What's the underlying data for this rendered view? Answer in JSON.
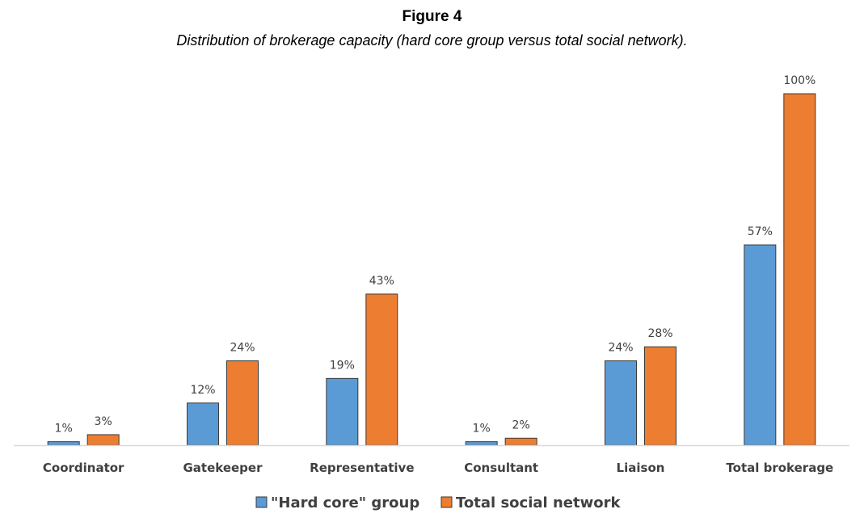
{
  "figure": {
    "label": "Figure 4",
    "caption": "Distribution of brokerage capacity (hard core group versus total social network)."
  },
  "chart_data": {
    "type": "bar",
    "categories": [
      "Coordinator",
      "Gatekeeper",
      "Representative",
      "Consultant",
      "Liaison",
      "Total brokerage"
    ],
    "series": [
      {
        "name": "\"Hard core\" group",
        "color": "#5b9bd5",
        "values": [
          1,
          12,
          19,
          1,
          24,
          57
        ],
        "labels": [
          "1%",
          "12%",
          "19%",
          "1%",
          "24%",
          "57%"
        ]
      },
      {
        "name": "Total social network",
        "color": "#ed7d31",
        "values": [
          3,
          24,
          43,
          2,
          28,
          100
        ],
        "labels": [
          "3%",
          "24%",
          "43%",
          "2%",
          "28%",
          "100%"
        ]
      }
    ],
    "ylim": [
      0,
      100
    ],
    "unit": "%",
    "grid": false,
    "legend_position": "bottom"
  }
}
